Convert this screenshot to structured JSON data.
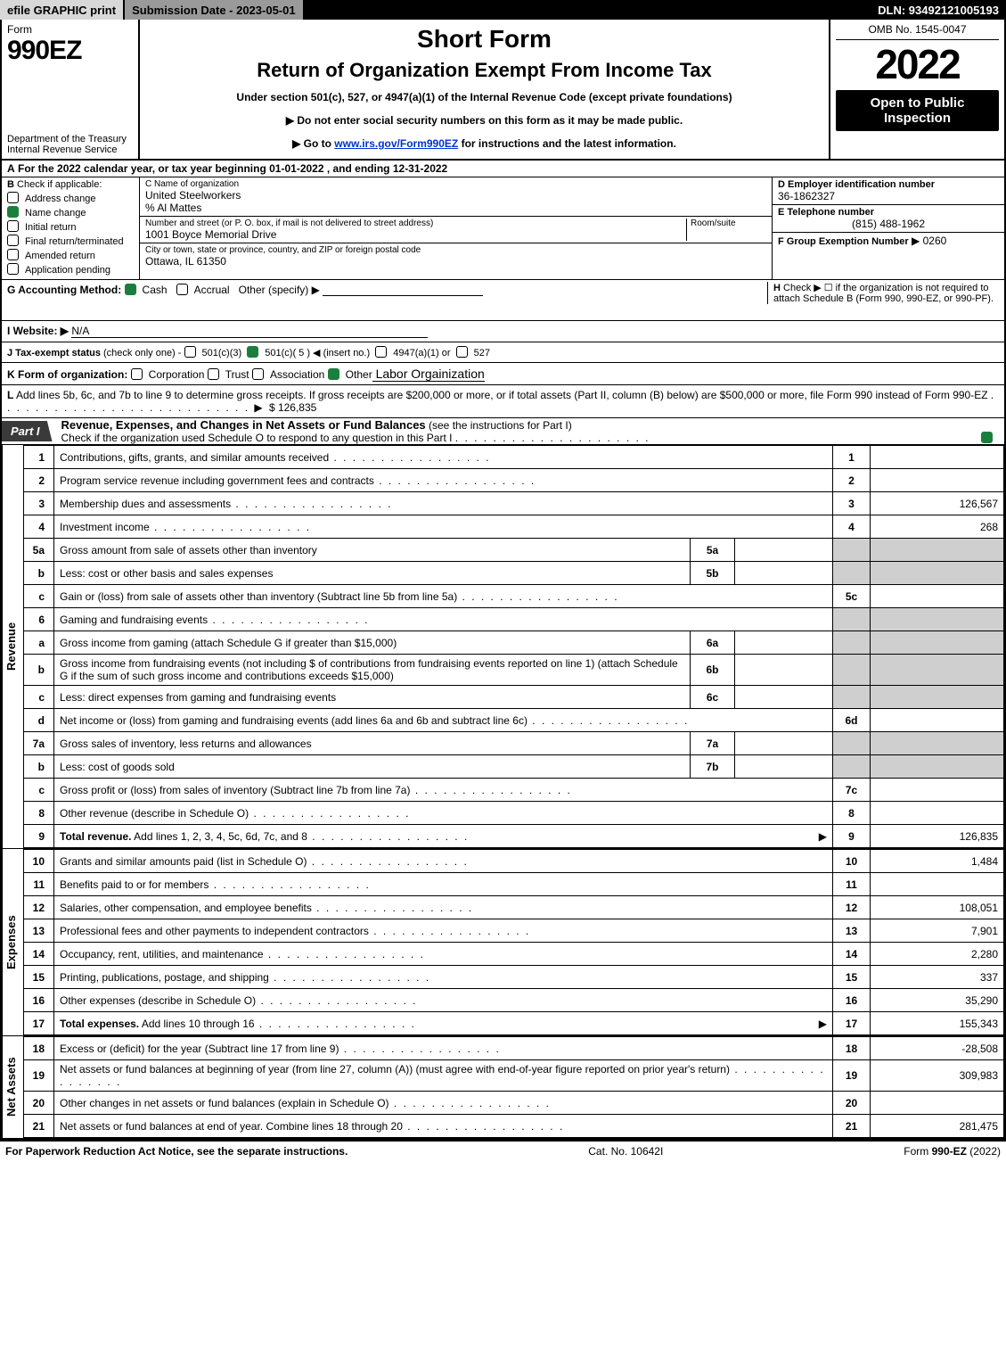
{
  "topbar": {
    "efile": "efile GRAPHIC print",
    "submission": "Submission Date - 2023-05-01",
    "dln": "DLN: 93492121005193"
  },
  "header": {
    "form_word": "Form",
    "form_number": "990EZ",
    "department": "Department of the Treasury\nInternal Revenue Service",
    "short_form": "Short Form",
    "return_title": "Return of Organization Exempt From Income Tax",
    "under_section": "Under section 501(c), 527, or 4947(a)(1) of the Internal Revenue Code (except private foundations)",
    "arrow1": "Do not enter social security numbers on this form as it may be made public.",
    "arrow2_prefix": "Go to ",
    "arrow2_link": "www.irs.gov/Form990EZ",
    "arrow2_suffix": " for instructions and the latest information.",
    "omb": "OMB No. 1545-0047",
    "tax_year": "2022",
    "open_to": "Open to Public Inspection"
  },
  "sectionA": {
    "label": "A",
    "text": "For the 2022 calendar year, or tax year beginning 01-01-2022 , and ending 12-31-2022"
  },
  "sectionB": {
    "label": "B",
    "intro": "Check if applicable:",
    "items": [
      {
        "label": "Address change",
        "checked": false
      },
      {
        "label": "Name change",
        "checked": true
      },
      {
        "label": "Initial return",
        "checked": false
      },
      {
        "label": "Final return/terminated",
        "checked": false
      },
      {
        "label": "Amended return",
        "checked": false
      },
      {
        "label": "Application pending",
        "checked": false
      }
    ]
  },
  "sectionC": {
    "name_label": "C Name of organization",
    "name": "United Steelworkers",
    "care_of": "% Al Mattes",
    "street_label": "Number and street (or P. O. box, if mail is not delivered to street address)",
    "room_label": "Room/suite",
    "street": "1001 Boyce Memorial Drive",
    "city_label": "City or town, state or province, country, and ZIP or foreign postal code",
    "city": "Ottawa, IL  61350"
  },
  "sectionD": {
    "label": "D Employer identification number",
    "value": "36-1862327"
  },
  "sectionE": {
    "label": "E Telephone number",
    "value": "(815) 488-1962"
  },
  "sectionF": {
    "label": "F Group Exemption Number",
    "value": "▶ 0260"
  },
  "sectionG": {
    "label": "G Accounting Method:",
    "cash": "Cash",
    "accrual": "Accrual",
    "other": "Other (specify) ▶",
    "cash_checked": true
  },
  "sectionH": {
    "label": "H",
    "text": "Check ▶  ☐  if the organization is not required to attach Schedule B (Form 990, 990-EZ, or 990-PF)."
  },
  "sectionI": {
    "label": "I Website: ▶",
    "value": "N/A"
  },
  "sectionJ": {
    "label": "J Tax-exempt status",
    "note": "(check only one) -",
    "opt1": "501(c)(3)",
    "opt2": "501(c)( 5 ) ◀ (insert no.)",
    "opt3": "4947(a)(1) or",
    "opt4": "527",
    "opt2_checked": true
  },
  "sectionK": {
    "label": "K Form of organization:",
    "opts": [
      "Corporation",
      "Trust",
      "Association",
      "Other"
    ],
    "other_value": "Labor Orgainization",
    "other_checked": true
  },
  "sectionL": {
    "label": "L",
    "text": "Add lines 5b, 6c, and 7b to line 9 to determine gross receipts. If gross receipts are $200,000 or more, or if total assets (Part II, column (B) below) are $500,000 or more, file Form 990 instead of Form 990-EZ",
    "amount": "$ 126,835"
  },
  "part1": {
    "tag": "Part I",
    "title": "Revenue, Expenses, and Changes in Net Assets or Fund Balances",
    "note": "(see the instructions for Part I)",
    "sub": "Check if the organization used Schedule O to respond to any question in this Part I",
    "sub_checked": true
  },
  "sides": {
    "revenue": "Revenue",
    "expenses": "Expenses",
    "netassets": "Net Assets"
  },
  "revenue_lines": [
    {
      "ln": "1",
      "desc": "Contributions, gifts, grants, and similar amounts received",
      "num": "1",
      "val": ""
    },
    {
      "ln": "2",
      "desc": "Program service revenue including government fees and contracts",
      "num": "2",
      "val": ""
    },
    {
      "ln": "3",
      "desc": "Membership dues and assessments",
      "num": "3",
      "val": "126,567"
    },
    {
      "ln": "4",
      "desc": "Investment income",
      "num": "4",
      "val": "268"
    },
    {
      "ln": "5a",
      "desc": "Gross amount from sale of assets other than inventory",
      "sub": "5a",
      "subval": ""
    },
    {
      "ln": "b",
      "desc": "Less: cost or other basis and sales expenses",
      "sub": "5b",
      "subval": ""
    },
    {
      "ln": "c",
      "desc": "Gain or (loss) from sale of assets other than inventory (Subtract line 5b from line 5a)",
      "num": "5c",
      "val": ""
    },
    {
      "ln": "6",
      "desc": "Gaming and fundraising events"
    },
    {
      "ln": "a",
      "desc": "Gross income from gaming (attach Schedule G if greater than $15,000)",
      "sub": "6a",
      "subval": ""
    },
    {
      "ln": "b",
      "desc": "Gross income from fundraising events (not including $                  of contributions from fundraising events reported on line 1) (attach Schedule G if the sum of such gross income and contributions exceeds $15,000)",
      "sub": "6b",
      "subval": ""
    },
    {
      "ln": "c",
      "desc": "Less: direct expenses from gaming and fundraising events",
      "sub": "6c",
      "subval": ""
    },
    {
      "ln": "d",
      "desc": "Net income or (loss) from gaming and fundraising events (add lines 6a and 6b and subtract line 6c)",
      "num": "6d",
      "val": ""
    },
    {
      "ln": "7a",
      "desc": "Gross sales of inventory, less returns and allowances",
      "sub": "7a",
      "subval": ""
    },
    {
      "ln": "b",
      "desc": "Less: cost of goods sold",
      "sub": "7b",
      "subval": ""
    },
    {
      "ln": "c",
      "desc": "Gross profit or (loss) from sales of inventory (Subtract line 7b from line 7a)",
      "num": "7c",
      "val": ""
    },
    {
      "ln": "8",
      "desc": "Other revenue (describe in Schedule O)",
      "num": "8",
      "val": ""
    },
    {
      "ln": "9",
      "desc": "Total revenue. Add lines 1, 2, 3, 4, 5c, 6d, 7c, and 8",
      "num": "9",
      "val": "126,835",
      "bold": true,
      "arrow": true
    }
  ],
  "expense_lines": [
    {
      "ln": "10",
      "desc": "Grants and similar amounts paid (list in Schedule O)",
      "num": "10",
      "val": "1,484"
    },
    {
      "ln": "11",
      "desc": "Benefits paid to or for members",
      "num": "11",
      "val": ""
    },
    {
      "ln": "12",
      "desc": "Salaries, other compensation, and employee benefits",
      "num": "12",
      "val": "108,051"
    },
    {
      "ln": "13",
      "desc": "Professional fees and other payments to independent contractors",
      "num": "13",
      "val": "7,901"
    },
    {
      "ln": "14",
      "desc": "Occupancy, rent, utilities, and maintenance",
      "num": "14",
      "val": "2,280"
    },
    {
      "ln": "15",
      "desc": "Printing, publications, postage, and shipping",
      "num": "15",
      "val": "337"
    },
    {
      "ln": "16",
      "desc": "Other expenses (describe in Schedule O)",
      "num": "16",
      "val": "35,290"
    },
    {
      "ln": "17",
      "desc": "Total expenses. Add lines 10 through 16",
      "num": "17",
      "val": "155,343",
      "bold": true,
      "arrow": true
    }
  ],
  "netasset_lines": [
    {
      "ln": "18",
      "desc": "Excess or (deficit) for the year (Subtract line 17 from line 9)",
      "num": "18",
      "val": "-28,508"
    },
    {
      "ln": "19",
      "desc": "Net assets or fund balances at beginning of year (from line 27, column (A)) (must agree with end-of-year figure reported on prior year's return)",
      "num": "19",
      "val": "309,983"
    },
    {
      "ln": "20",
      "desc": "Other changes in net assets or fund balances (explain in Schedule O)",
      "num": "20",
      "val": ""
    },
    {
      "ln": "21",
      "desc": "Net assets or fund balances at end of year. Combine lines 18 through 20",
      "num": "21",
      "val": "281,475"
    }
  ],
  "footer": {
    "left": "For Paperwork Reduction Act Notice, see the separate instructions.",
    "center": "Cat. No. 10642I",
    "right": "Form 990-EZ (2022)"
  }
}
